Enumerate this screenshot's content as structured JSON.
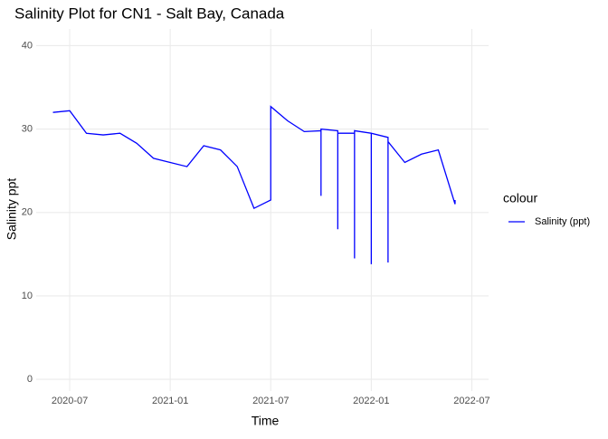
{
  "chart_data": {
    "type": "line",
    "title": "Salinity Plot for CN1 - Salt Bay, Canada",
    "x_label": "Time",
    "y_label": "Salinity ppt",
    "legend_title": "colour",
    "legend_position": "right",
    "x": [
      "2020-06",
      "2020-07",
      "2020-08",
      "2020-09",
      "2020-10",
      "2020-11",
      "2020-12",
      "2021-01",
      "2021-02",
      "2021-03",
      "2021-04",
      "2021-05",
      "2021-06",
      "2021-07",
      "2021-07",
      "2021-08",
      "2021-09",
      "2021-10",
      "2021-10",
      "2021-10",
      "2021-11",
      "2021-11",
      "2021-11",
      "2021-12",
      "2021-12",
      "2021-12",
      "2022-01",
      "2022-01",
      "2022-01",
      "2022-02",
      "2022-02",
      "2022-02",
      "2022-03",
      "2022-04",
      "2022-05",
      "2022-06",
      "2022-06"
    ],
    "series": [
      {
        "name": "Salinity (ppt)",
        "color": "#0000ff",
        "values": [
          32,
          32.2,
          29.5,
          29.3,
          29.5,
          28.3,
          26.5,
          26,
          25.5,
          28,
          27.5,
          25.5,
          20.5,
          21.5,
          32.7,
          31,
          29.7,
          29.8,
          22,
          30,
          29.8,
          18,
          29.5,
          29.5,
          14.5,
          29.8,
          29.5,
          13.8,
          29.5,
          29,
          14,
          28.5,
          26,
          27,
          27.5,
          21,
          21.5
        ]
      }
    ],
    "xlim": [
      "2020-05",
      "2022-08"
    ],
    "xticks": [
      "2020-07",
      "2021-01",
      "2021-07",
      "2022-01",
      "2022-07"
    ],
    "ylim": [
      -1.4,
      42
    ],
    "yticks": [
      0,
      10,
      20,
      30,
      40
    ],
    "grid": true
  }
}
